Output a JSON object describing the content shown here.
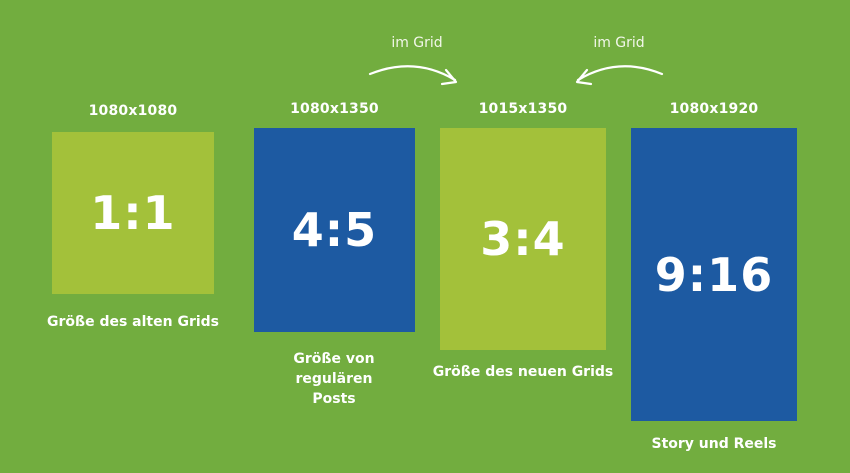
{
  "arrows": [
    {
      "label": "im Grid"
    },
    {
      "label": "im Grid"
    }
  ],
  "formats": [
    {
      "dimensions": "1080x1080",
      "ratio": "1:1",
      "caption": "Größe des alten Grids",
      "color": "#a3c13a"
    },
    {
      "dimensions": "1080x1350",
      "ratio": "4:5",
      "caption": "Größe von regulären Posts",
      "color": "#1d5aa2"
    },
    {
      "dimensions": "1015x1350",
      "ratio": "3:4",
      "caption": "Größe des neuen Grids",
      "color": "#a3c13a"
    },
    {
      "dimensions": "1080x1920",
      "ratio": "9:16",
      "caption": "Story und Reels",
      "color": "#1d5aa2"
    }
  ],
  "colors": {
    "background": "#72ad3f",
    "light_green": "#a3c13a",
    "blue": "#1d5aa2"
  }
}
